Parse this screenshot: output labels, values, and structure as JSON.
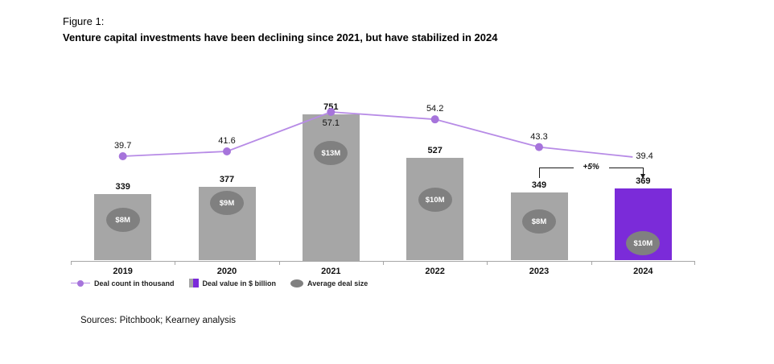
{
  "figure": {
    "label": "Figure 1:",
    "title": "Venture capital investments have been declining since 2021, but have stabilized in 2024",
    "sources": "Sources: Pitchbook; Kearney analysis"
  },
  "colors": {
    "bar_gray": "#A6A6A6",
    "bar_purple": "#7B2BD9",
    "line_purple": "#B78BE6",
    "marker_purple": "#A674DB",
    "bubble_gray": "#808080",
    "axis_gray": "#A6A6A6"
  },
  "legend": {
    "items": [
      {
        "label": "Deal count in thousand",
        "swatch": "line-marker"
      },
      {
        "label": "Deal value in $ billion",
        "swatch": "split-bar"
      },
      {
        "label": "Average deal size",
        "swatch": "ellipse"
      }
    ]
  },
  "chart_data": {
    "type": "combo",
    "categories": [
      "2019",
      "2020",
      "2021",
      "2022",
      "2023",
      "2024"
    ],
    "series": [
      {
        "name": "Deal value in $ billion",
        "type": "bar",
        "values": [
          339,
          377,
          751,
          527,
          349,
          369
        ],
        "highlight_index": 5
      },
      {
        "name": "Deal count in thousand",
        "type": "line",
        "values": [
          39.7,
          41.6,
          57.1,
          54.2,
          43.3,
          39.4
        ]
      },
      {
        "name": "Average deal size",
        "type": "bubble-label",
        "values": [
          "$8M",
          "$9M",
          "$13M",
          "$10M",
          "$8M",
          "$10M"
        ]
      }
    ],
    "annotations": [
      {
        "text": "+5%",
        "from_category": "2023",
        "to_category": "2024"
      }
    ],
    "layout_hints": {
      "grid": false,
      "bar_value_axis_visible": false,
      "line_value_axis_visible": false,
      "legend_position": "bottom-left",
      "bubble_center_y": [
        273,
        252,
        190,
        248,
        275,
        302
      ],
      "last_line_point_has_marker": false
    }
  }
}
